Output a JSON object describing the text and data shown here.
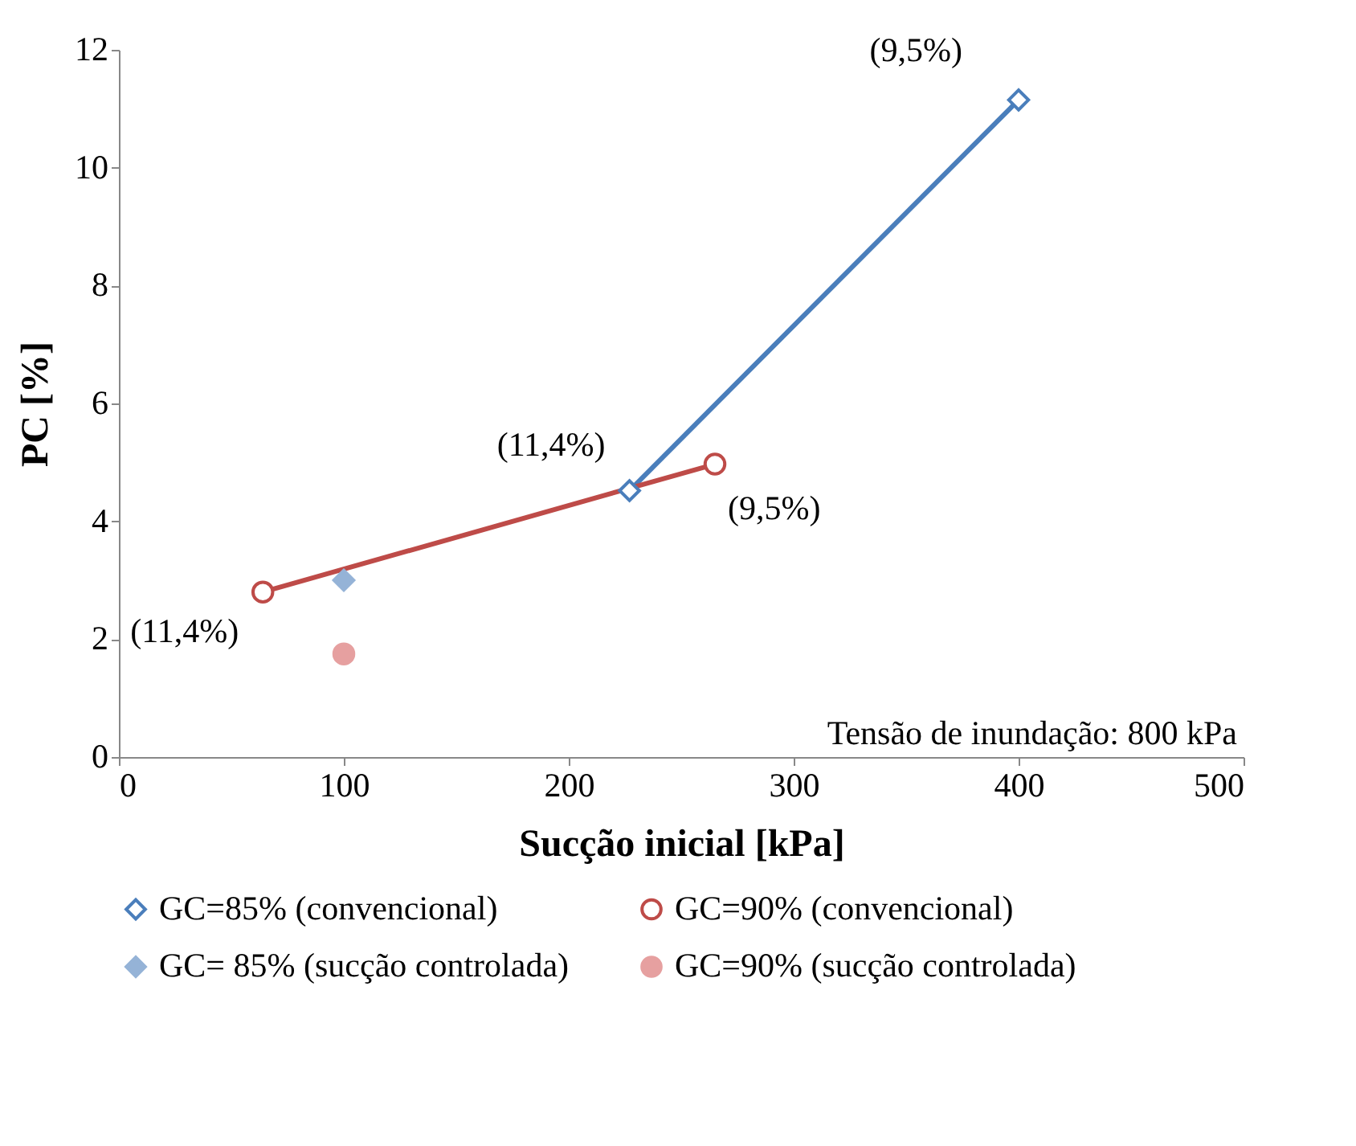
{
  "chart_data": {
    "type": "line",
    "xlabel": "Sucção inicial [kPa]",
    "ylabel": "PC [%]",
    "xlim": [
      0,
      500
    ],
    "xticks": [
      0,
      100,
      200,
      300,
      400,
      500
    ],
    "ylim": [
      0,
      12
    ],
    "yticks": [
      0,
      2,
      4,
      6,
      8,
      10,
      12
    ],
    "grid": false,
    "legend": "bottom",
    "line_style": "solid",
    "series": [
      {
        "name": "GC=85% (convencional)",
        "marker": "diamond",
        "color": "#4a7ebb",
        "x": [
          227,
          400
        ],
        "values": [
          4.52,
          11.15
        ]
      },
      {
        "name": "GC=90% (convencional)",
        "marker": "circle",
        "color": "#be4b48",
        "x": [
          64,
          265
        ],
        "values": [
          2.8,
          4.97
        ]
      },
      {
        "name": "GC= 85% (sucção controlada)",
        "type": "scatter",
        "marker": "diamond",
        "color": "#95b3d7",
        "x": [
          100
        ],
        "values": [
          3.0
        ]
      },
      {
        "name": "GC=90% (sucção controlada)",
        "type": "scatter",
        "marker": "circle",
        "color": "#e6a0a0",
        "x": [
          100
        ],
        "values": [
          1.75
        ]
      }
    ],
    "annotations": [
      {
        "text": "(9,5%)",
        "x": 400,
        "y": 11.15
      },
      {
        "text": "(11,4%)",
        "x": 227,
        "y": 4.52
      },
      {
        "text": "(9,5%)",
        "x": 265,
        "y": 4.97
      },
      {
        "text": "(11,4%)",
        "x": 64,
        "y": 2.8
      },
      "Tensão de inundação: 800 kPa"
    ]
  }
}
